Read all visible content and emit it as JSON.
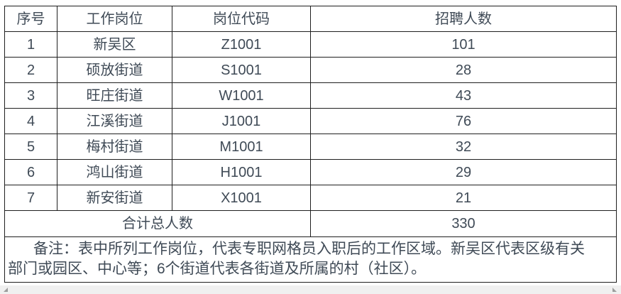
{
  "colors": {
    "text": "#3f4a56",
    "border": "#1f1f1f",
    "background": "#ffffff",
    "scrollbar_track": "#f0f0f0",
    "scrollbar_handle": "#9d9d9d"
  },
  "table": {
    "headers": [
      "序号",
      "工作岗位",
      "岗位代码",
      "招聘人数"
    ],
    "rows": [
      {
        "seq": "1",
        "position": "新吴区",
        "code": "Z1001",
        "count": "101"
      },
      {
        "seq": "2",
        "position": "硕放街道",
        "code": "S1001",
        "count": "28"
      },
      {
        "seq": "3",
        "position": "旺庄街道",
        "code": "W1001",
        "count": "43"
      },
      {
        "seq": "4",
        "position": "江溪街道",
        "code": "J1001",
        "count": "76"
      },
      {
        "seq": "5",
        "position": "梅村街道",
        "code": "M1001",
        "count": "32"
      },
      {
        "seq": "6",
        "position": "鸿山街道",
        "code": "H1001",
        "count": "29"
      },
      {
        "seq": "7",
        "position": "新安街道",
        "code": "X1001",
        "count": "21"
      }
    ],
    "total_label": "合计总人数",
    "total_value": "330",
    "note_lines": [
      "备注：表中所列工作岗位，代表专职网格员入职后的工作区域。新吴区代表区级有关",
      "部门或园区、中心等；6个街道代表各街道及所属的村（社区）。"
    ]
  },
  "icons": {
    "bottom_left_handle": "scrollbar-left-handle-icon (small gray triangle)",
    "bottom_right_handle": "scrollbar-right-handle-icon (small gray triangle)"
  }
}
